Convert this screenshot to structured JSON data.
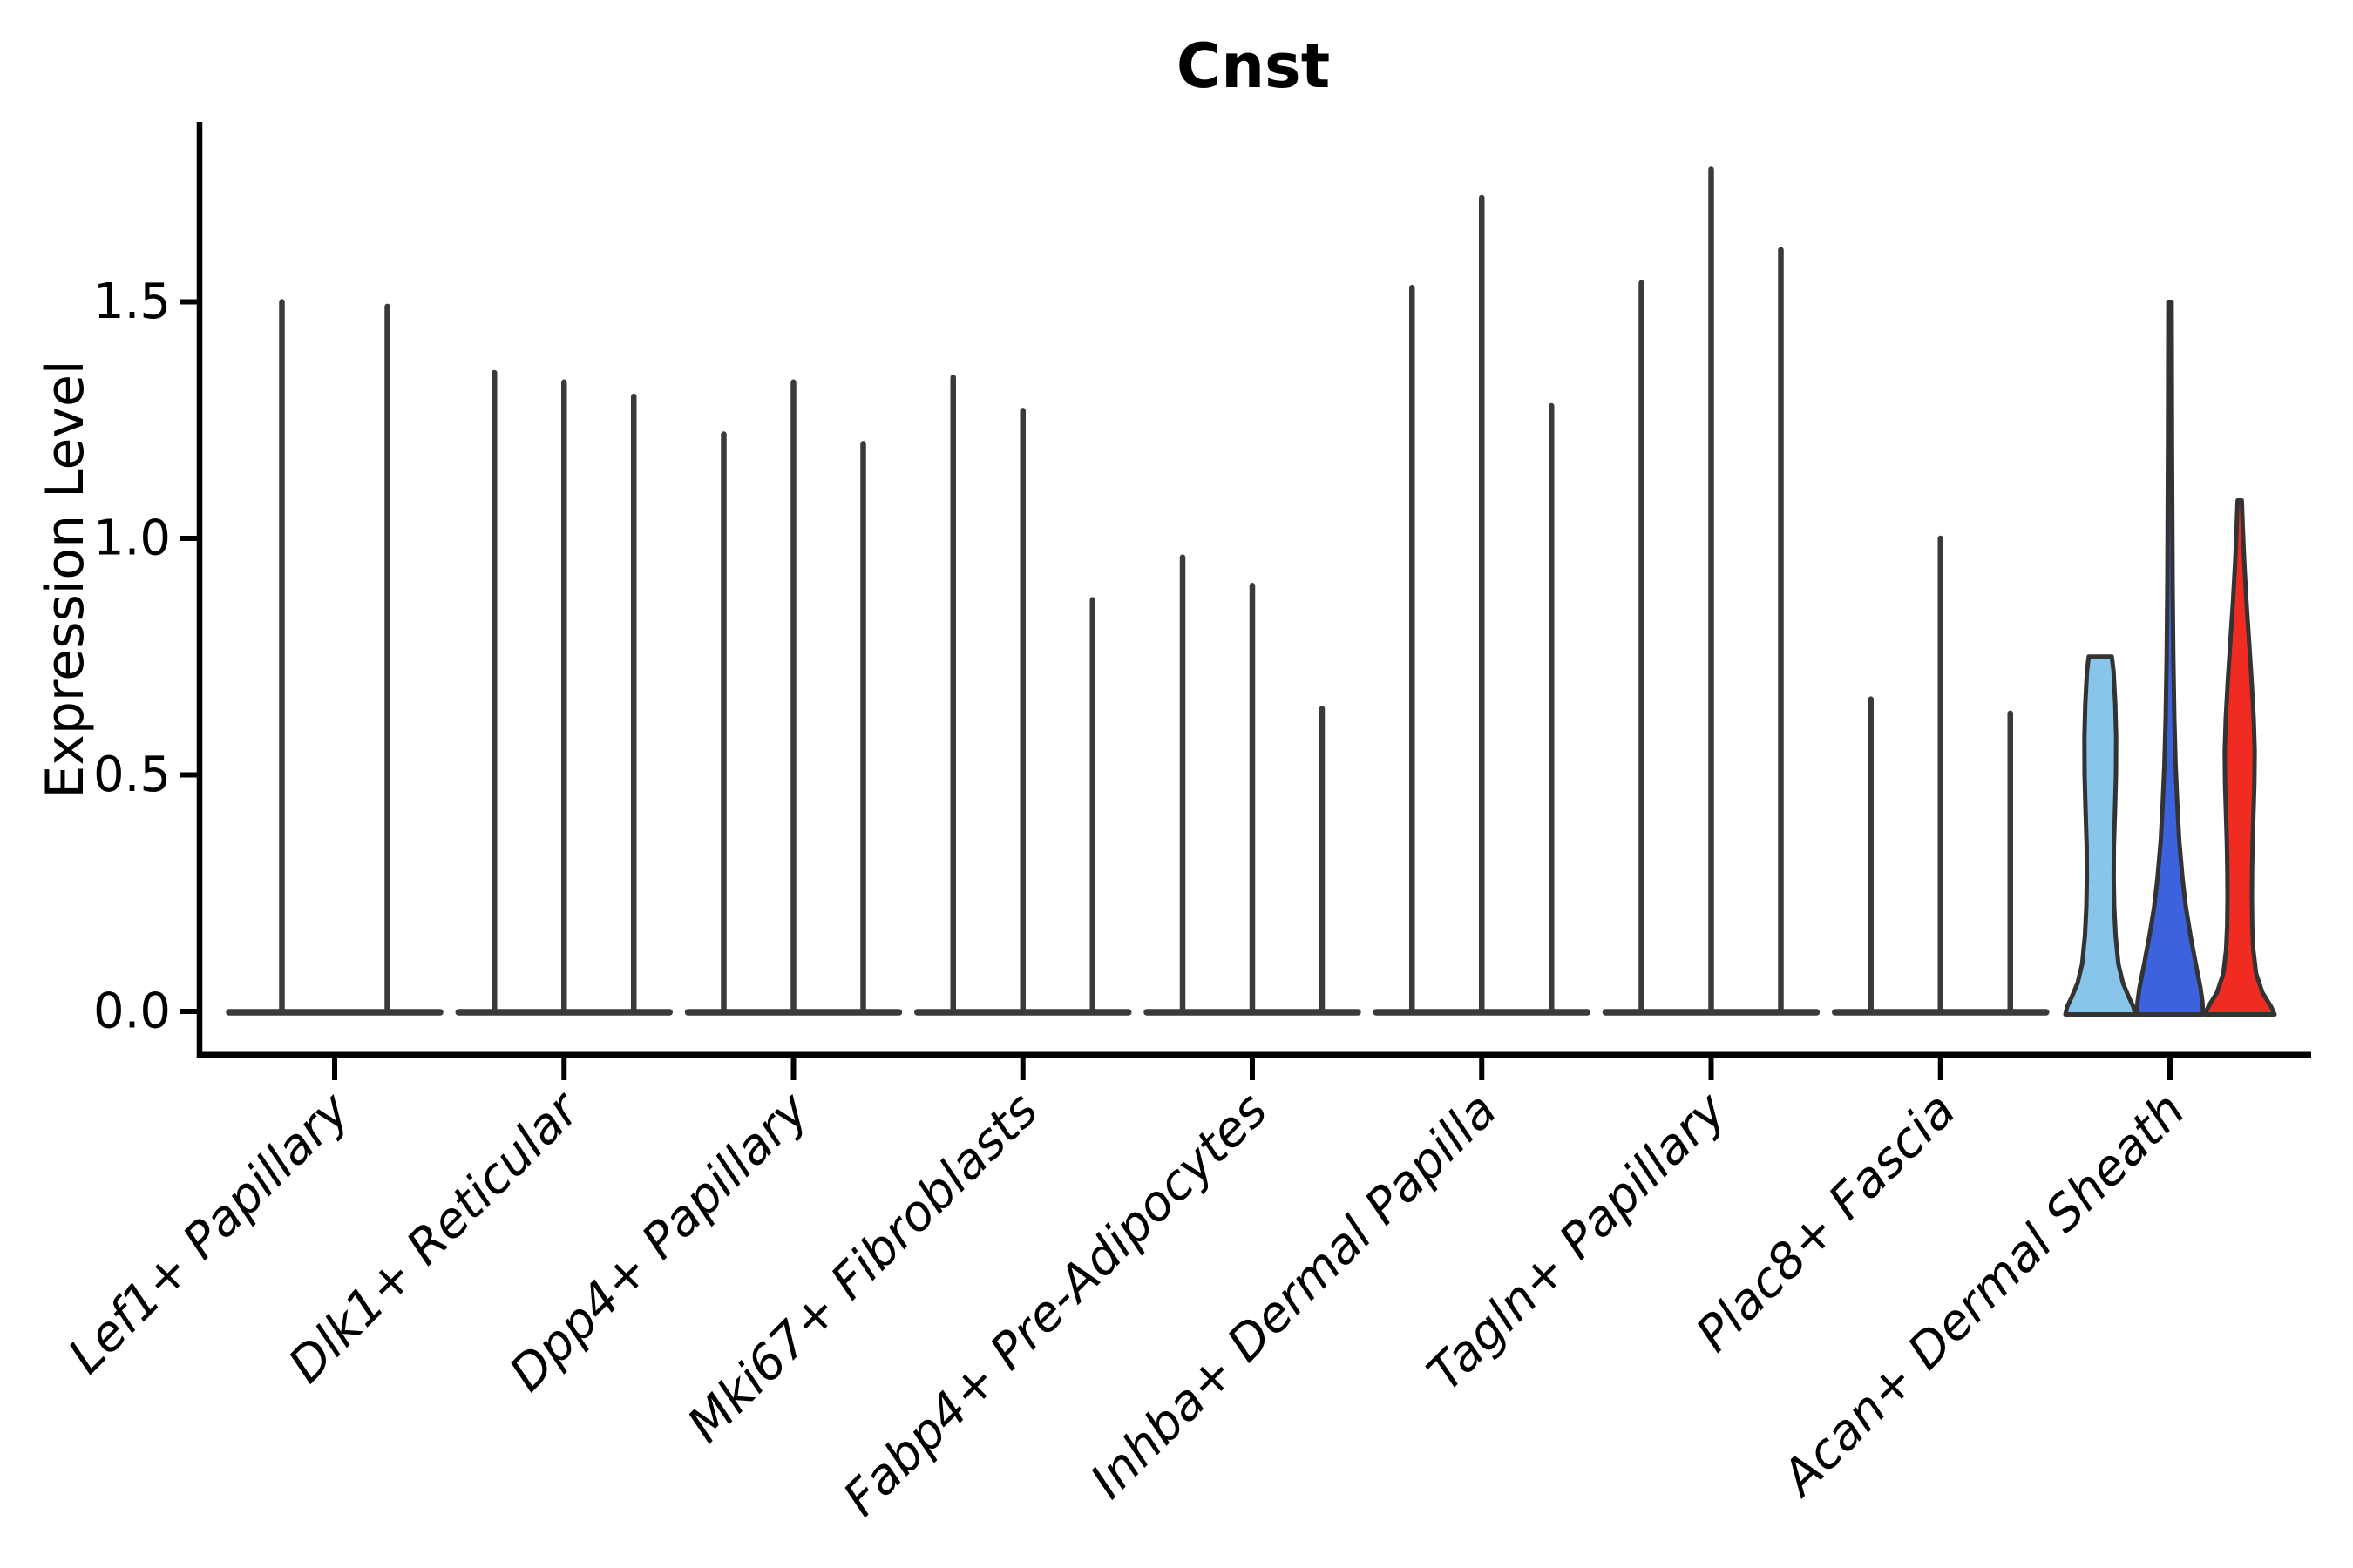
{
  "chart_data": {
    "type": "violin",
    "title": "Cnst",
    "xlabel": "",
    "ylabel": "Expression Level",
    "ytick_labels": [
      "0.0",
      "0.5",
      "1.0",
      "1.5"
    ],
    "ytick_values": [
      0.0,
      0.5,
      1.0,
      1.5
    ],
    "ylim": [
      -0.09,
      1.88
    ],
    "grid": false,
    "legend": "none",
    "categories": [
      "Lef1+ Papillary",
      "Dlk1+ Reticular",
      "Dpp4+ Papillary",
      "Mki67+ Fibroblasts",
      "Fabp4+ Pre-Adipocytes",
      "Inhba+ Dermal Papilla",
      "Tagln+ Papillary",
      "Plac8+ Fascia",
      "Acan+ Dermal Sheath"
    ],
    "style": {
      "spike_color": "#3a3a3a",
      "baseline_color": "#3a3a3a",
      "outline_color": "#333333",
      "axis_color": "#000000",
      "highlight_fill_lightblue": "#88C5EA",
      "highlight_fill_darkblue": "#3D62DE",
      "highlight_fill_red": "#F02C22"
    },
    "groups": [
      {
        "label": "Lef1+ Papillary",
        "violins": [
          {
            "max": 1.5
          },
          {
            "max": 1.49
          }
        ]
      },
      {
        "label": "Dlk1+ Reticular",
        "violins": [
          {
            "max": 1.35
          },
          {
            "max": 1.33
          },
          {
            "max": 1.3
          }
        ]
      },
      {
        "label": "Dpp4+ Papillary",
        "violins": [
          {
            "max": 1.22
          },
          {
            "max": 1.33
          },
          {
            "max": 1.2
          }
        ]
      },
      {
        "label": "Mki67+ Fibroblasts",
        "violins": [
          {
            "max": 1.34
          },
          {
            "max": 1.27
          },
          {
            "max": 0.87
          }
        ]
      },
      {
        "label": "Fabp4+ Pre-Adipocytes",
        "violins": [
          {
            "max": 0.96
          },
          {
            "max": 0.9
          },
          {
            "max": 0.64
          }
        ]
      },
      {
        "label": "Inhba+ Dermal Papilla",
        "violins": [
          {
            "max": 1.53
          },
          {
            "max": 1.72
          },
          {
            "max": 1.28
          }
        ]
      },
      {
        "label": "Tagln+ Papillary",
        "violins": [
          {
            "max": 1.54
          },
          {
            "max": 1.78
          },
          {
            "max": 1.61
          }
        ]
      },
      {
        "label": "Plac8+ Fascia",
        "violins": [
          {
            "max": 0.66
          },
          {
            "max": 1.0
          },
          {
            "max": 0.63
          }
        ]
      },
      {
        "label": "Acan+ Dermal Sheath",
        "violins": [
          {
            "max": 0.75,
            "fill": "#88C5EA",
            "hw": 40,
            "flat_top": true,
            "profile": [
              [
                0.75,
                0.33
              ],
              [
                0.72,
                0.38
              ],
              [
                0.65,
                0.43
              ],
              [
                0.58,
                0.455
              ],
              [
                0.5,
                0.45
              ],
              [
                0.42,
                0.42
              ],
              [
                0.35,
                0.39
              ],
              [
                0.28,
                0.385
              ],
              [
                0.22,
                0.4
              ],
              [
                0.16,
                0.44
              ],
              [
                0.1,
                0.52
              ],
              [
                0.06,
                0.65
              ],
              [
                0.03,
                0.82
              ],
              [
                0.01,
                0.95
              ],
              [
                0.0,
                1.0
              ]
            ]
          },
          {
            "max": 1.5,
            "fill": "#3D62DE",
            "hw": 38,
            "flat_top": false,
            "profile": [
              [
                1.5,
                0.05
              ],
              [
                1.35,
                0.055
              ],
              [
                1.2,
                0.06
              ],
              [
                1.05,
                0.07
              ],
              [
                0.9,
                0.08
              ],
              [
                0.75,
                0.1
              ],
              [
                0.62,
                0.13
              ],
              [
                0.52,
                0.17
              ],
              [
                0.44,
                0.22
              ],
              [
                0.36,
                0.28
              ],
              [
                0.28,
                0.38
              ],
              [
                0.22,
                0.48
              ],
              [
                0.16,
                0.62
              ],
              [
                0.1,
                0.78
              ],
              [
                0.05,
                0.92
              ],
              [
                0.02,
                0.98
              ],
              [
                0.0,
                1.0
              ]
            ]
          },
          {
            "max": 1.08,
            "fill": "#F02C22",
            "hw": 40,
            "flat_top": false,
            "profile": [
              [
                1.08,
                0.06
              ],
              [
                1.02,
                0.09
              ],
              [
                0.95,
                0.13
              ],
              [
                0.87,
                0.19
              ],
              [
                0.78,
                0.27
              ],
              [
                0.7,
                0.34
              ],
              [
                0.62,
                0.4
              ],
              [
                0.55,
                0.43
              ],
              [
                0.48,
                0.42
              ],
              [
                0.42,
                0.395
              ],
              [
                0.36,
                0.37
              ],
              [
                0.3,
                0.355
              ],
              [
                0.24,
                0.35
              ],
              [
                0.18,
                0.36
              ],
              [
                0.13,
                0.39
              ],
              [
                0.08,
                0.47
              ],
              [
                0.04,
                0.65
              ],
              [
                0.01,
                0.9
              ],
              [
                0.0,
                1.0
              ]
            ]
          }
        ]
      }
    ]
  }
}
